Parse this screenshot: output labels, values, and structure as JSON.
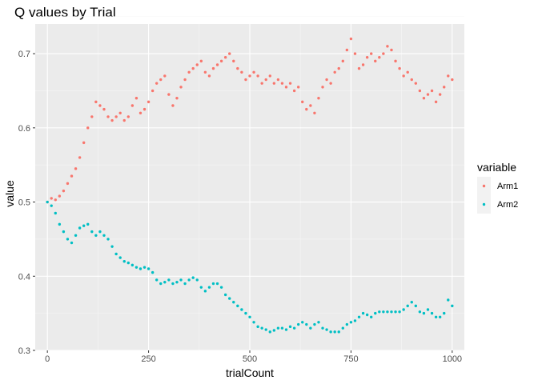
{
  "chart_data": {
    "type": "scatter",
    "title": "Q values by Trial",
    "xlabel": "trialCount",
    "ylabel": "value",
    "xlim": [
      -30,
      1030
    ],
    "ylim": [
      0.3,
      0.74
    ],
    "x_ticks": [
      0,
      250,
      500,
      750,
      1000
    ],
    "y_ticks": [
      0.3,
      0.4,
      0.5,
      0.6,
      0.7
    ],
    "x_tick_labels": [
      "0",
      "250",
      "500",
      "750",
      "1000"
    ],
    "y_tick_labels": [
      "0.3",
      "0.4",
      "0.5",
      "0.6",
      "0.7"
    ],
    "grid": true,
    "legend": {
      "title": "variable",
      "position": "right"
    },
    "series": [
      {
        "name": "Arm1",
        "color": "#F8766D",
        "points": [
          [
            0,
            0.5
          ],
          [
            10,
            0.505
          ],
          [
            20,
            0.503
          ],
          [
            30,
            0.508
          ],
          [
            40,
            0.515
          ],
          [
            50,
            0.525
          ],
          [
            60,
            0.535
          ],
          [
            70,
            0.545
          ],
          [
            80,
            0.56
          ],
          [
            90,
            0.58
          ],
          [
            100,
            0.6
          ],
          [
            110,
            0.615
          ],
          [
            120,
            0.635
          ],
          [
            130,
            0.63
          ],
          [
            140,
            0.625
          ],
          [
            150,
            0.615
          ],
          [
            160,
            0.61
          ],
          [
            170,
            0.615
          ],
          [
            180,
            0.62
          ],
          [
            190,
            0.61
          ],
          [
            200,
            0.615
          ],
          [
            210,
            0.63
          ],
          [
            220,
            0.64
          ],
          [
            230,
            0.62
          ],
          [
            240,
            0.625
          ],
          [
            250,
            0.635
          ],
          [
            260,
            0.65
          ],
          [
            270,
            0.66
          ],
          [
            280,
            0.665
          ],
          [
            290,
            0.67
          ],
          [
            300,
            0.645
          ],
          [
            310,
            0.63
          ],
          [
            320,
            0.64
          ],
          [
            330,
            0.655
          ],
          [
            340,
            0.665
          ],
          [
            350,
            0.675
          ],
          [
            360,
            0.68
          ],
          [
            370,
            0.685
          ],
          [
            380,
            0.69
          ],
          [
            390,
            0.675
          ],
          [
            400,
            0.67
          ],
          [
            410,
            0.68
          ],
          [
            420,
            0.685
          ],
          [
            430,
            0.69
          ],
          [
            440,
            0.695
          ],
          [
            450,
            0.7
          ],
          [
            460,
            0.69
          ],
          [
            470,
            0.68
          ],
          [
            480,
            0.675
          ],
          [
            490,
            0.665
          ],
          [
            500,
            0.67
          ],
          [
            510,
            0.675
          ],
          [
            520,
            0.67
          ],
          [
            530,
            0.66
          ],
          [
            540,
            0.665
          ],
          [
            550,
            0.67
          ],
          [
            560,
            0.66
          ],
          [
            570,
            0.665
          ],
          [
            580,
            0.66
          ],
          [
            590,
            0.655
          ],
          [
            600,
            0.66
          ],
          [
            610,
            0.65
          ],
          [
            620,
            0.655
          ],
          [
            630,
            0.635
          ],
          [
            640,
            0.625
          ],
          [
            650,
            0.63
          ],
          [
            660,
            0.62
          ],
          [
            670,
            0.64
          ],
          [
            680,
            0.655
          ],
          [
            690,
            0.665
          ],
          [
            700,
            0.66
          ],
          [
            710,
            0.675
          ],
          [
            720,
            0.68
          ],
          [
            730,
            0.69
          ],
          [
            740,
            0.705
          ],
          [
            750,
            0.72
          ],
          [
            760,
            0.7
          ],
          [
            770,
            0.68
          ],
          [
            780,
            0.685
          ],
          [
            790,
            0.695
          ],
          [
            800,
            0.7
          ],
          [
            810,
            0.69
          ],
          [
            820,
            0.695
          ],
          [
            830,
            0.7
          ],
          [
            840,
            0.71
          ],
          [
            850,
            0.705
          ],
          [
            860,
            0.69
          ],
          [
            870,
            0.68
          ],
          [
            880,
            0.67
          ],
          [
            890,
            0.675
          ],
          [
            900,
            0.665
          ],
          [
            910,
            0.66
          ],
          [
            920,
            0.65
          ],
          [
            930,
            0.64
          ],
          [
            940,
            0.645
          ],
          [
            950,
            0.65
          ],
          [
            960,
            0.635
          ],
          [
            970,
            0.645
          ],
          [
            980,
            0.655
          ],
          [
            990,
            0.67
          ],
          [
            1000,
            0.665
          ]
        ]
      },
      {
        "name": "Arm2",
        "color": "#00BFC4",
        "points": [
          [
            0,
            0.5
          ],
          [
            10,
            0.495
          ],
          [
            20,
            0.485
          ],
          [
            30,
            0.47
          ],
          [
            40,
            0.46
          ],
          [
            50,
            0.45
          ],
          [
            60,
            0.445
          ],
          [
            70,
            0.455
          ],
          [
            80,
            0.465
          ],
          [
            90,
            0.468
          ],
          [
            100,
            0.47
          ],
          [
            110,
            0.46
          ],
          [
            120,
            0.455
          ],
          [
            130,
            0.46
          ],
          [
            140,
            0.455
          ],
          [
            150,
            0.45
          ],
          [
            160,
            0.44
          ],
          [
            170,
            0.43
          ],
          [
            180,
            0.425
          ],
          [
            190,
            0.42
          ],
          [
            200,
            0.418
          ],
          [
            210,
            0.415
          ],
          [
            220,
            0.412
          ],
          [
            230,
            0.41
          ],
          [
            240,
            0.412
          ],
          [
            250,
            0.41
          ],
          [
            260,
            0.405
          ],
          [
            270,
            0.395
          ],
          [
            280,
            0.39
          ],
          [
            290,
            0.392
          ],
          [
            300,
            0.395
          ],
          [
            310,
            0.39
          ],
          [
            320,
            0.392
          ],
          [
            330,
            0.395
          ],
          [
            340,
            0.39
          ],
          [
            350,
            0.395
          ],
          [
            360,
            0.398
          ],
          [
            370,
            0.395
          ],
          [
            380,
            0.385
          ],
          [
            390,
            0.38
          ],
          [
            400,
            0.385
          ],
          [
            410,
            0.39
          ],
          [
            420,
            0.39
          ],
          [
            430,
            0.385
          ],
          [
            440,
            0.375
          ],
          [
            450,
            0.37
          ],
          [
            460,
            0.365
          ],
          [
            470,
            0.36
          ],
          [
            480,
            0.355
          ],
          [
            490,
            0.35
          ],
          [
            500,
            0.345
          ],
          [
            510,
            0.338
          ],
          [
            520,
            0.332
          ],
          [
            530,
            0.33
          ],
          [
            540,
            0.328
          ],
          [
            550,
            0.325
          ],
          [
            560,
            0.327
          ],
          [
            570,
            0.33
          ],
          [
            580,
            0.33
          ],
          [
            590,
            0.328
          ],
          [
            600,
            0.332
          ],
          [
            610,
            0.33
          ],
          [
            620,
            0.335
          ],
          [
            630,
            0.338
          ],
          [
            640,
            0.335
          ],
          [
            650,
            0.33
          ],
          [
            660,
            0.335
          ],
          [
            670,
            0.338
          ],
          [
            680,
            0.33
          ],
          [
            690,
            0.328
          ],
          [
            700,
            0.325
          ],
          [
            710,
            0.325
          ],
          [
            720,
            0.325
          ],
          [
            730,
            0.33
          ],
          [
            740,
            0.335
          ],
          [
            750,
            0.338
          ],
          [
            760,
            0.34
          ],
          [
            770,
            0.345
          ],
          [
            780,
            0.35
          ],
          [
            790,
            0.348
          ],
          [
            800,
            0.345
          ],
          [
            810,
            0.35
          ],
          [
            820,
            0.352
          ],
          [
            830,
            0.352
          ],
          [
            840,
            0.352
          ],
          [
            850,
            0.352
          ],
          [
            860,
            0.352
          ],
          [
            870,
            0.352
          ],
          [
            880,
            0.355
          ],
          [
            890,
            0.36
          ],
          [
            900,
            0.365
          ],
          [
            910,
            0.36
          ],
          [
            920,
            0.352
          ],
          [
            930,
            0.35
          ],
          [
            940,
            0.355
          ],
          [
            950,
            0.35
          ],
          [
            960,
            0.345
          ],
          [
            970,
            0.345
          ],
          [
            980,
            0.35
          ],
          [
            990,
            0.368
          ],
          [
            1000,
            0.36
          ]
        ]
      }
    ]
  }
}
